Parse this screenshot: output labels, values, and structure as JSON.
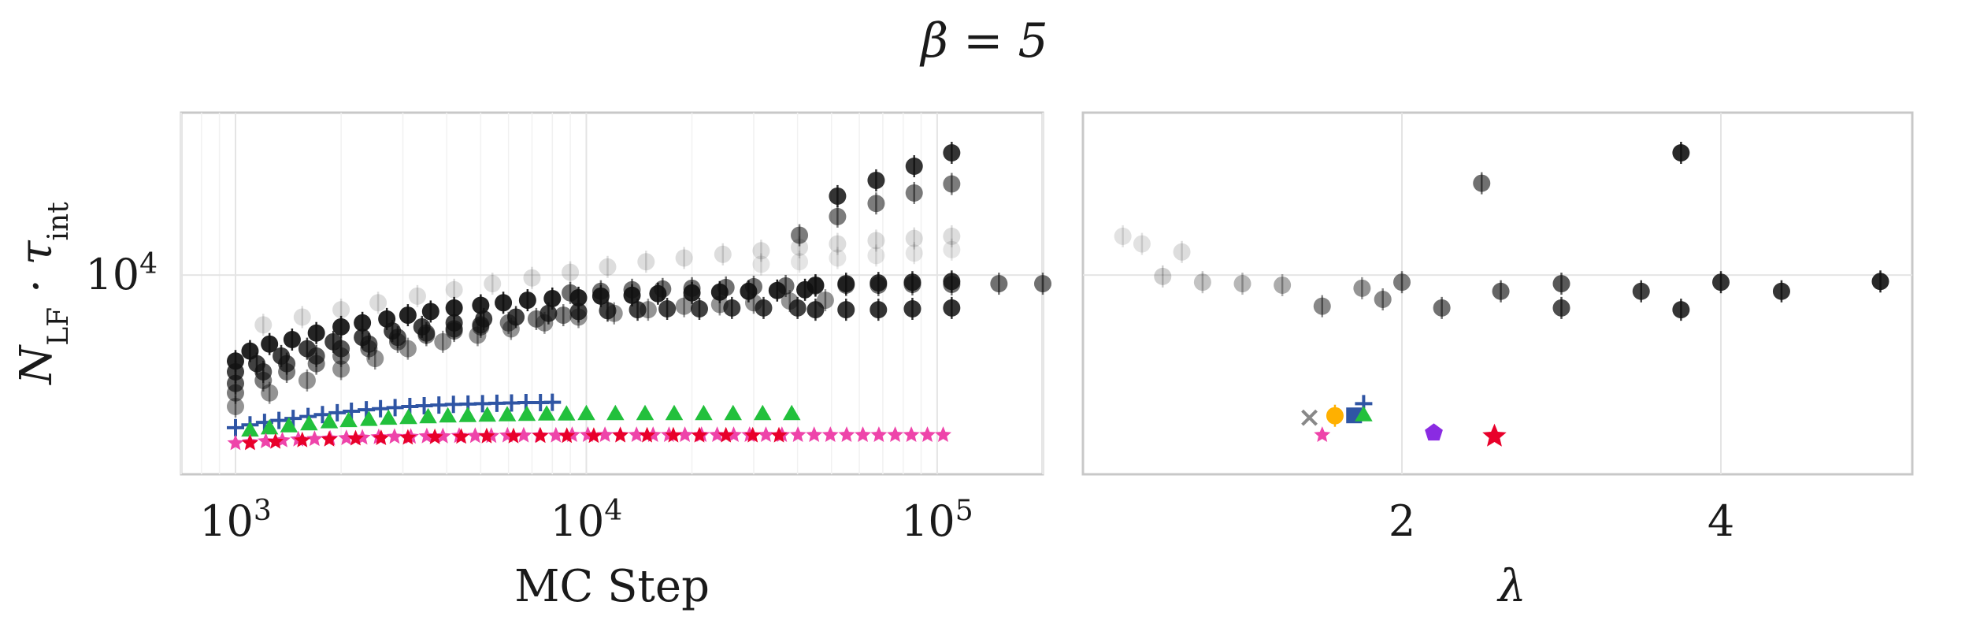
{
  "figure": {
    "suptitle": "β = 5"
  },
  "chart_data": [
    {
      "type": "scatter",
      "panel": "left",
      "xlabel": "MC Step",
      "ylabel": "N_LF · τ_int",
      "ylabel_main": "N",
      "ylabel_sub1": "LF",
      "ylabel_mid": " · τ",
      "ylabel_sub2": "int",
      "xscale": "log",
      "yscale": "log",
      "xlim": [
        700,
        200000
      ],
      "ylim": [
        2400,
        32000
      ],
      "grid": true,
      "x_ticks": [
        {
          "value": 1000,
          "base": "10",
          "exp": "3"
        },
        {
          "value": 10000,
          "base": "10",
          "exp": "4"
        },
        {
          "value": 100000,
          "base": "10",
          "exp": "5"
        }
      ],
      "y_ticks": [
        {
          "value": 10000,
          "base": "10",
          "exp": "4"
        }
      ],
      "colors": {
        "black": "#111111",
        "blue": "#2f55a4",
        "green": "#22c03c",
        "red": "#e8002a",
        "pink": "#ee44aa",
        "orange": "#ffb000",
        "purple": "#8a2be2",
        "gray": "#888888"
      },
      "series": [
        {
          "marker": "circle",
          "color": "black",
          "opacity": 0.92,
          "x": [
            1000,
            1100,
            1250,
            1450,
            1700,
            2000,
            2300,
            2700,
            3100,
            3600,
            4200,
            5000,
            5800,
            6800,
            8000,
            9500,
            11000,
            13500,
            16000,
            20000,
            24000,
            29000,
            35000,
            42000
          ],
          "y": [
            5400,
            5800,
            6100,
            6300,
            6600,
            6900,
            7100,
            7300,
            7500,
            7700,
            7900,
            8050,
            8200,
            8350,
            8450,
            8500,
            8600,
            8650,
            8750,
            8800,
            8850,
            8900,
            8950,
            9000
          ]
        },
        {
          "marker": "circle",
          "color": "black",
          "opacity": 0.8,
          "x": [
            1000,
            1150,
            1350,
            1600,
            1900,
            2300,
            2800,
            3400,
            4200,
            5100,
            6300,
            7800,
            9500,
            11500,
            14000,
            17000,
            21000,
            26000,
            32000,
            40000
          ],
          "y": [
            5000,
            5300,
            5600,
            5900,
            6200,
            6400,
            6700,
            6900,
            7100,
            7300,
            7400,
            7600,
            7700,
            7750,
            7800,
            7850,
            7850,
            7900,
            7900,
            7900
          ]
        },
        {
          "marker": "circle",
          "color": "black",
          "opacity": 0.85,
          "x": [
            45000,
            55000,
            68000,
            85000,
            110000
          ],
          "y": [
            7800,
            7800,
            7800,
            7850,
            7900
          ]
        },
        {
          "marker": "circle",
          "color": "black",
          "opacity": 0.7,
          "x": [
            1000,
            1200,
            1400,
            1700,
            2000,
            2400,
            2900,
            3500,
            4200,
            5000
          ],
          "y": [
            4600,
            5000,
            5300,
            5600,
            5900,
            6100,
            6400,
            6600,
            6800,
            7000
          ]
        },
        {
          "marker": "circle",
          "color": "black",
          "opacity": 0.55,
          "x": [
            1000,
            1200,
            1400,
            1700,
            2000,
            2400,
            2900,
            3500,
            4200,
            5000,
            6000,
            7200,
            8600
          ],
          "y": [
            4300,
            4700,
            5000,
            5300,
            5600,
            5900,
            6200,
            6500,
            6700,
            6900,
            7100,
            7300,
            7500
          ]
        },
        {
          "marker": "circle",
          "color": "black",
          "opacity": 0.45,
          "x": [
            1000,
            1250,
            1600,
            2000,
            2500,
            3100,
            3900,
            4900,
            6100,
            7600,
            9500,
            12000,
            15000,
            19000,
            24000,
            30000,
            38000,
            48000
          ],
          "y": [
            3900,
            4300,
            4700,
            5100,
            5500,
            5900,
            6200,
            6500,
            6800,
            7100,
            7400,
            7600,
            7800,
            8000,
            8100,
            8200,
            8300,
            8350
          ]
        },
        {
          "marker": "circle",
          "color": "black",
          "opacity": 0.6,
          "x": [
            9000,
            11000,
            13500,
            16500,
            20000,
            25000,
            30000,
            37000,
            45000,
            55000,
            68000,
            85000,
            110000,
            150000,
            200000
          ],
          "y": [
            8800,
            8900,
            9000,
            9050,
            9100,
            9150,
            9200,
            9250,
            9250,
            9300,
            9300,
            9350,
            9350,
            9400,
            9400
          ]
        },
        {
          "marker": "circle",
          "color": "black",
          "opacity": 0.85,
          "x": [
            45000,
            55000,
            68000,
            85000,
            110000
          ],
          "y": [
            9300,
            9400,
            9450,
            9500,
            9550
          ]
        },
        {
          "marker": "circle",
          "color": "black",
          "opacity": 0.14,
          "x": [
            1200,
            1550,
            2000,
            2550,
            3300,
            4200,
            5400,
            7000,
            9000,
            11500,
            14800,
            19000,
            24500,
            31500,
            40500,
            52000,
            67000,
            86000,
            110000
          ],
          "y": [
            7000,
            7400,
            7800,
            8200,
            8600,
            9000,
            9400,
            9800,
            10200,
            10600,
            11000,
            11300,
            11600,
            11900,
            12200,
            12500,
            12800,
            13000,
            13200
          ]
        },
        {
          "marker": "circle",
          "color": "black",
          "opacity": 0.11,
          "x": [
            31500,
            40500,
            52000,
            67000,
            86000,
            110000
          ],
          "y": [
            10800,
            11000,
            11300,
            11500,
            11700,
            12000
          ]
        },
        {
          "marker": "circle",
          "color": "black",
          "opacity": 0.55,
          "x": [
            40500,
            52000,
            67000,
            86000,
            110000
          ],
          "y": [
            13300,
            15200,
            16700,
            18000,
            19200
          ]
        },
        {
          "marker": "circle",
          "color": "black",
          "opacity": 0.85,
          "x": [
            52000,
            67000,
            86000,
            110000
          ],
          "y": [
            17600,
            19700,
            21800,
            24000
          ]
        },
        {
          "marker": "plus",
          "color": "blue",
          "opacity": 1,
          "x": [
            1000,
            1100,
            1210,
            1330,
            1460,
            1610,
            1770,
            1950,
            2140,
            2360,
            2590,
            2850,
            3140,
            3450,
            3800,
            4180,
            4600,
            5060,
            5560,
            6120,
            6730,
            7400,
            8000
          ],
          "y": [
            3350,
            3420,
            3480,
            3530,
            3580,
            3630,
            3680,
            3730,
            3770,
            3810,
            3840,
            3870,
            3900,
            3920,
            3940,
            3960,
            3970,
            3980,
            3990,
            4000,
            4010,
            4010,
            4020
          ]
        },
        {
          "marker": "triangle",
          "color": "green",
          "opacity": 1,
          "x": [
            1100,
            1250,
            1420,
            1620,
            1850,
            2100,
            2400,
            2730,
            3110,
            3540,
            4030,
            4590,
            5220,
            5950,
            6770,
            7710,
            8780,
            10000,
            12100,
            14700,
            17800,
            21600,
            26200,
            31800,
            38500
          ],
          "y": [
            3300,
            3350,
            3400,
            3450,
            3500,
            3530,
            3560,
            3590,
            3610,
            3630,
            3650,
            3660,
            3670,
            3680,
            3690,
            3700,
            3700,
            3710,
            3710,
            3710,
            3710,
            3710,
            3710,
            3710,
            3710
          ]
        },
        {
          "marker": "star",
          "color": "pink",
          "opacity": 1,
          "x": [
            1000,
            1100,
            1220,
            1360,
            1510,
            1680,
            1860,
            2070,
            2300,
            2560,
            2840,
            3160,
            3510,
            3900,
            4340,
            4820,
            5360,
            5960,
            6630,
            7370,
            8190,
            9110,
            10100,
            11300,
            12500,
            13900,
            15500,
            17200,
            19100,
            21300,
            23600,
            26300,
            29200,
            32500,
            36100,
            40100,
            44600,
            49600,
            55200,
            61400,
            68200,
            75900,
            84400,
            93800,
            104000
          ],
          "y": [
            3000,
            3020,
            3040,
            3060,
            3080,
            3090,
            3100,
            3110,
            3120,
            3130,
            3140,
            3140,
            3150,
            3150,
            3160,
            3160,
            3160,
            3170,
            3170,
            3170,
            3170,
            3180,
            3180,
            3180,
            3180,
            3180,
            3180,
            3180,
            3180,
            3180,
            3180,
            3180,
            3180,
            3180,
            3180,
            3180,
            3180,
            3180,
            3180,
            3180,
            3180,
            3180,
            3180,
            3180,
            3180
          ]
        },
        {
          "marker": "star",
          "color": "red",
          "opacity": 1,
          "x": [
            1100,
            1300,
            1550,
            1850,
            2200,
            2600,
            3100,
            3700,
            4400,
            5200,
            6200,
            7400,
            8800,
            10500,
            12500,
            14900,
            17700,
            21000,
            25000,
            29800,
            35400
          ],
          "y": [
            3000,
            3030,
            3060,
            3080,
            3100,
            3110,
            3120,
            3130,
            3140,
            3150,
            3150,
            3160,
            3160,
            3160,
            3170,
            3170,
            3170,
            3170,
            3170,
            3170,
            3170
          ]
        }
      ]
    },
    {
      "type": "scatter",
      "panel": "right",
      "xlabel": "λ",
      "xscale": "linear",
      "yscale": "log",
      "xlim": [
        0.0,
        5.2
      ],
      "ylim": [
        2400,
        32000
      ],
      "grid": true,
      "x_ticks": [
        {
          "value": 2,
          "label": "2"
        },
        {
          "value": 4,
          "label": "4"
        }
      ],
      "series": [
        {
          "marker": "circle",
          "color": "black",
          "points": [
            {
              "x": 0.25,
              "y": 13200,
              "o": 0.12
            },
            {
              "x": 0.37,
              "y": 12500,
              "o": 0.12
            },
            {
              "x": 0.62,
              "y": 11800,
              "o": 0.14
            },
            {
              "x": 0.5,
              "y": 9900,
              "o": 0.2
            },
            {
              "x": 0.75,
              "y": 9500,
              "o": 0.25
            },
            {
              "x": 1.0,
              "y": 9400,
              "o": 0.3
            },
            {
              "x": 1.25,
              "y": 9300,
              "o": 0.35
            },
            {
              "x": 1.5,
              "y": 8000,
              "o": 0.5
            },
            {
              "x": 1.75,
              "y": 9100,
              "o": 0.45
            },
            {
              "x": 1.88,
              "y": 8400,
              "o": 0.5
            },
            {
              "x": 2.0,
              "y": 9500,
              "o": 0.55
            },
            {
              "x": 2.25,
              "y": 7900,
              "o": 0.6
            },
            {
              "x": 2.5,
              "y": 19300,
              "o": 0.6
            },
            {
              "x": 2.62,
              "y": 8900,
              "o": 0.65
            },
            {
              "x": 3.0,
              "y": 9400,
              "o": 0.7
            },
            {
              "x": 3.0,
              "y": 7900,
              "o": 0.75
            },
            {
              "x": 3.5,
              "y": 8900,
              "o": 0.8
            },
            {
              "x": 3.75,
              "y": 24000,
              "o": 0.9
            },
            {
              "x": 3.75,
              "y": 7800,
              "o": 0.85
            },
            {
              "x": 4.0,
              "y": 9500,
              "o": 0.85
            },
            {
              "x": 4.38,
              "y": 8900,
              "o": 0.85
            },
            {
              "x": 5.0,
              "y": 9550,
              "o": 0.9
            }
          ]
        },
        {
          "marker": "x",
          "color": "gray",
          "points": [
            {
              "x": 1.42,
              "y": 3600,
              "o": 1
            }
          ]
        },
        {
          "marker": "circle",
          "color": "orange",
          "points": [
            {
              "x": 1.58,
              "y": 3650,
              "o": 1
            }
          ]
        },
        {
          "marker": "square",
          "color": "blue",
          "points": [
            {
              "x": 1.7,
              "y": 3660,
              "o": 1
            }
          ]
        },
        {
          "marker": "plus",
          "color": "blue",
          "points": [
            {
              "x": 1.76,
              "y": 3980,
              "o": 1
            }
          ]
        },
        {
          "marker": "triangle",
          "color": "green",
          "points": [
            {
              "x": 1.76,
              "y": 3680,
              "o": 1
            }
          ]
        },
        {
          "marker": "star",
          "color": "pink",
          "points": [
            {
              "x": 1.5,
              "y": 3180,
              "o": 1
            }
          ]
        },
        {
          "marker": "pentagon",
          "color": "purple",
          "points": [
            {
              "x": 2.2,
              "y": 3230,
              "o": 1
            }
          ]
        },
        {
          "marker": "star",
          "color": "red",
          "points": [
            {
              "x": 2.58,
              "y": 3150,
              "o": 1
            }
          ]
        }
      ]
    }
  ]
}
